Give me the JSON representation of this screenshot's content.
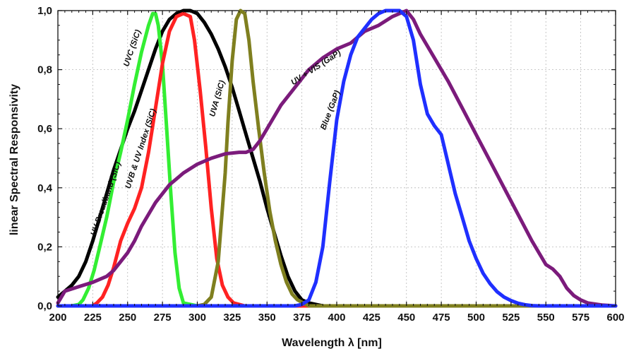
{
  "chart_data": {
    "type": "line",
    "title": "",
    "xlabel": "Wavelength λ [nm]",
    "ylabel": "linear Spectral Responsivity",
    "xlim": [
      200,
      600
    ],
    "ylim": [
      0,
      1.0
    ],
    "x_ticks": [
      "200",
      "225",
      "250",
      "275",
      "300",
      "325",
      "350",
      "375",
      "400",
      "425",
      "450",
      "475",
      "500",
      "525",
      "550",
      "575",
      "600"
    ],
    "y_ticks": [
      "0,0",
      "0,2",
      "0,4",
      "0,6",
      "0,8",
      "1,0"
    ],
    "grid": true,
    "series": [
      {
        "name": "UV Broadband (SiC)",
        "color": "#000000",
        "x": [
          200,
          205,
          210,
          215,
          220,
          225,
          230,
          235,
          240,
          245,
          250,
          255,
          260,
          265,
          270,
          275,
          280,
          285,
          290,
          295,
          300,
          305,
          310,
          315,
          320,
          325,
          330,
          335,
          340,
          345,
          350,
          355,
          360,
          365,
          370,
          375,
          380,
          385,
          390,
          400
        ],
        "y": [
          0.03,
          0.05,
          0.07,
          0.1,
          0.15,
          0.22,
          0.3,
          0.38,
          0.46,
          0.53,
          0.6,
          0.66,
          0.73,
          0.8,
          0.87,
          0.93,
          0.97,
          0.99,
          1.0,
          1.0,
          0.99,
          0.96,
          0.92,
          0.87,
          0.81,
          0.74,
          0.66,
          0.58,
          0.5,
          0.42,
          0.33,
          0.25,
          0.17,
          0.1,
          0.05,
          0.02,
          0.01,
          0.005,
          0.0,
          0.0
        ]
      },
      {
        "name": "UVC (SiC)",
        "color": "#33ee33",
        "x": [
          200,
          210,
          215,
          218,
          222,
          226,
          230,
          235,
          240,
          245,
          250,
          255,
          260,
          265,
          268,
          270,
          272,
          275,
          278,
          281,
          284,
          287,
          290,
          300,
          400,
          600
        ],
        "y": [
          0.0,
          0.0,
          0.005,
          0.02,
          0.06,
          0.12,
          0.2,
          0.3,
          0.42,
          0.52,
          0.63,
          0.75,
          0.86,
          0.95,
          0.99,
          0.99,
          0.95,
          0.82,
          0.6,
          0.38,
          0.18,
          0.06,
          0.01,
          0.0,
          0.0,
          0.0
        ]
      },
      {
        "name": "UVB & UV Index (SiC)",
        "color": "#ff2222",
        "x": [
          200,
          225,
          228,
          232,
          236,
          240,
          245,
          250,
          255,
          260,
          265,
          270,
          275,
          280,
          285,
          290,
          295,
          298,
          302,
          306,
          310,
          314,
          318,
          322,
          326,
          330,
          334,
          340,
          600
        ],
        "y": [
          0.0,
          0.0,
          0.01,
          0.03,
          0.07,
          0.13,
          0.22,
          0.28,
          0.33,
          0.4,
          0.52,
          0.67,
          0.82,
          0.93,
          0.98,
          0.99,
          0.98,
          0.9,
          0.73,
          0.54,
          0.33,
          0.16,
          0.07,
          0.03,
          0.01,
          0.005,
          0.0,
          0.0,
          0.0
        ]
      },
      {
        "name": "UVA (SiC)",
        "color": "#7f7f1f",
        "x": [
          200,
          300,
          305,
          310,
          315,
          320,
          322,
          325,
          328,
          331,
          334,
          337,
          340,
          344,
          348,
          352,
          356,
          360,
          364,
          368,
          372,
          376,
          380,
          600
        ],
        "y": [
          0.0,
          0.0,
          0.005,
          0.03,
          0.15,
          0.45,
          0.62,
          0.83,
          0.97,
          1.0,
          0.99,
          0.9,
          0.76,
          0.6,
          0.45,
          0.32,
          0.22,
          0.14,
          0.08,
          0.04,
          0.02,
          0.01,
          0.0,
          0.0
        ]
      },
      {
        "name": "UV + VIS (GaP)",
        "color": "#7b1b7b",
        "x": [
          200,
          205,
          215,
          225,
          235,
          240,
          245,
          250,
          255,
          260,
          265,
          270,
          275,
          280,
          285,
          290,
          300,
          310,
          320,
          330,
          335,
          340,
          345,
          350,
          360,
          370,
          380,
          390,
          400,
          410,
          420,
          430,
          440,
          445,
          450,
          455,
          460,
          470,
          480,
          490,
          500,
          510,
          520,
          530,
          540,
          550,
          555,
          560,
          565,
          570,
          575,
          580,
          590,
          600
        ],
        "y": [
          0.01,
          0.05,
          0.065,
          0.08,
          0.1,
          0.12,
          0.15,
          0.18,
          0.22,
          0.27,
          0.31,
          0.35,
          0.38,
          0.41,
          0.43,
          0.45,
          0.48,
          0.5,
          0.515,
          0.52,
          0.52,
          0.53,
          0.56,
          0.6,
          0.68,
          0.74,
          0.8,
          0.84,
          0.87,
          0.89,
          0.93,
          0.95,
          0.98,
          0.99,
          1.0,
          0.97,
          0.92,
          0.84,
          0.76,
          0.67,
          0.58,
          0.49,
          0.4,
          0.31,
          0.22,
          0.14,
          0.125,
          0.1,
          0.06,
          0.035,
          0.02,
          0.01,
          0.003,
          0.0
        ]
      },
      {
        "name": "Blue (GaP)",
        "color": "#1f2fff",
        "x": [
          200,
          370,
          375,
          380,
          385,
          390,
          395,
          400,
          405,
          410,
          415,
          420,
          425,
          430,
          435,
          440,
          445,
          450,
          455,
          460,
          465,
          470,
          475,
          480,
          485,
          490,
          495,
          500,
          505,
          510,
          515,
          520,
          525,
          530,
          535,
          540,
          545,
          550,
          600
        ],
        "y": [
          0.0,
          0.0,
          0.005,
          0.02,
          0.08,
          0.2,
          0.42,
          0.63,
          0.76,
          0.85,
          0.91,
          0.94,
          0.97,
          0.99,
          1.0,
          1.0,
          1.0,
          0.98,
          0.9,
          0.75,
          0.65,
          0.61,
          0.58,
          0.48,
          0.38,
          0.3,
          0.22,
          0.16,
          0.11,
          0.075,
          0.048,
          0.03,
          0.018,
          0.009,
          0.004,
          0.001,
          0.0,
          0.0,
          0.0
        ]
      }
    ],
    "annotations": [
      {
        "text": "UV Broadband (SiC)",
        "x": 236,
        "y": 0.36,
        "angle": -71
      },
      {
        "text": "UVC (SiC)",
        "x": 255,
        "y": 0.87,
        "angle": -71
      },
      {
        "text": "UVB & UV Index (SiC)",
        "x": 261,
        "y": 0.53,
        "angle": -72
      },
      {
        "text": "UVA (SiC)",
        "x": 316,
        "y": 0.7,
        "angle": -74
      },
      {
        "text": "UV + VIS (GaP)",
        "x": 386,
        "y": 0.8,
        "angle": -33
      },
      {
        "text": "Blue (GaP)",
        "x": 397,
        "y": 0.66,
        "angle": -69
      }
    ]
  }
}
